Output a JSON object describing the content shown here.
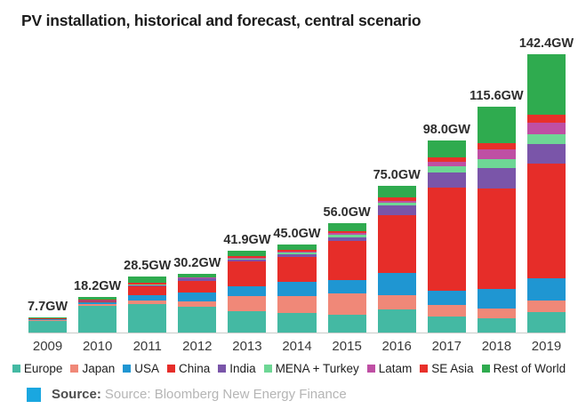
{
  "title": "PV installation, historical and forecast, central scenario",
  "chart_data": {
    "type": "bar",
    "subtype": "stacked-vertical",
    "unit": "GW",
    "grid": false,
    "legend_position": "bottom",
    "categories": [
      "2009",
      "2010",
      "2011",
      "2012",
      "2013",
      "2014",
      "2015",
      "2016",
      "2017",
      "2018",
      "2019"
    ],
    "total_labels": [
      "7.7GW",
      "18.2GW",
      "28.5GW",
      "30.2GW",
      "41.9GW",
      "45.0GW",
      "56.0GW",
      "75.0GW",
      "98.0GW",
      "115.6GW",
      "142.4GW"
    ],
    "totals_gw": [
      7.7,
      18.2,
      28.5,
      30.2,
      41.9,
      45.0,
      56.0,
      75.0,
      98.0,
      115.6,
      142.4
    ],
    "ylim": [
      0,
      152
    ],
    "series": [
      {
        "name": "Europe",
        "color": "#44b9a3",
        "values": [
          5.9,
          13.6,
          14.5,
          13.0,
          11.0,
          10.0,
          9.0,
          11.8,
          8.1,
          7.2,
          10.4
        ]
      },
      {
        "name": "Japan",
        "color": "#f08878",
        "values": [
          0.5,
          1.0,
          2.0,
          3.0,
          7.5,
          8.5,
          11.0,
          7.5,
          5.9,
          5.2,
          6.0
        ]
      },
      {
        "name": "USA",
        "color": "#1f96d2",
        "values": [
          0.5,
          0.9,
          2.5,
          4.4,
          5.2,
          7.5,
          7.0,
          11.3,
          7.2,
          9.7,
          11.2
        ]
      },
      {
        "name": "China",
        "color": "#e62d29",
        "values": [
          0.2,
          0.6,
          4.5,
          6.0,
          12.5,
          12.5,
          20.0,
          29.4,
          52.7,
          51.5,
          59.0
        ]
      },
      {
        "name": "India",
        "color": "#7a55a9",
        "values": [
          0.1,
          0.3,
          0.8,
          1.2,
          1.1,
          1.5,
          1.8,
          4.8,
          8.1,
          10.4,
          9.7
        ]
      },
      {
        "name": "MENA + Turkey",
        "color": "#6ed795",
        "values": [
          0.05,
          0.1,
          0.2,
          0.2,
          0.4,
          0.7,
          1.0,
          1.5,
          3.0,
          4.5,
          5.2
        ]
      },
      {
        "name": "Latam",
        "color": "#bf4fa4",
        "values": [
          0.05,
          0.1,
          0.2,
          0.2,
          0.5,
          0.8,
          1.0,
          1.0,
          2.2,
          5.2,
          6.0
        ]
      },
      {
        "name": "SE Asia",
        "color": "#e8302a",
        "values": [
          0.1,
          0.3,
          0.8,
          0.4,
          0.7,
          0.7,
          1.2,
          1.9,
          2.3,
          3.0,
          3.7
        ]
      },
      {
        "name": "Rest of World",
        "color": "#2fab4f",
        "values": [
          0.3,
          1.3,
          3.0,
          1.8,
          3.0,
          2.8,
          4.0,
          5.8,
          8.5,
          18.9,
          31.2
        ]
      }
    ]
  },
  "source": {
    "icon_color": "#1aa7e0",
    "label": "Source:",
    "text": "Source: Bloomberg New Energy Finance"
  }
}
